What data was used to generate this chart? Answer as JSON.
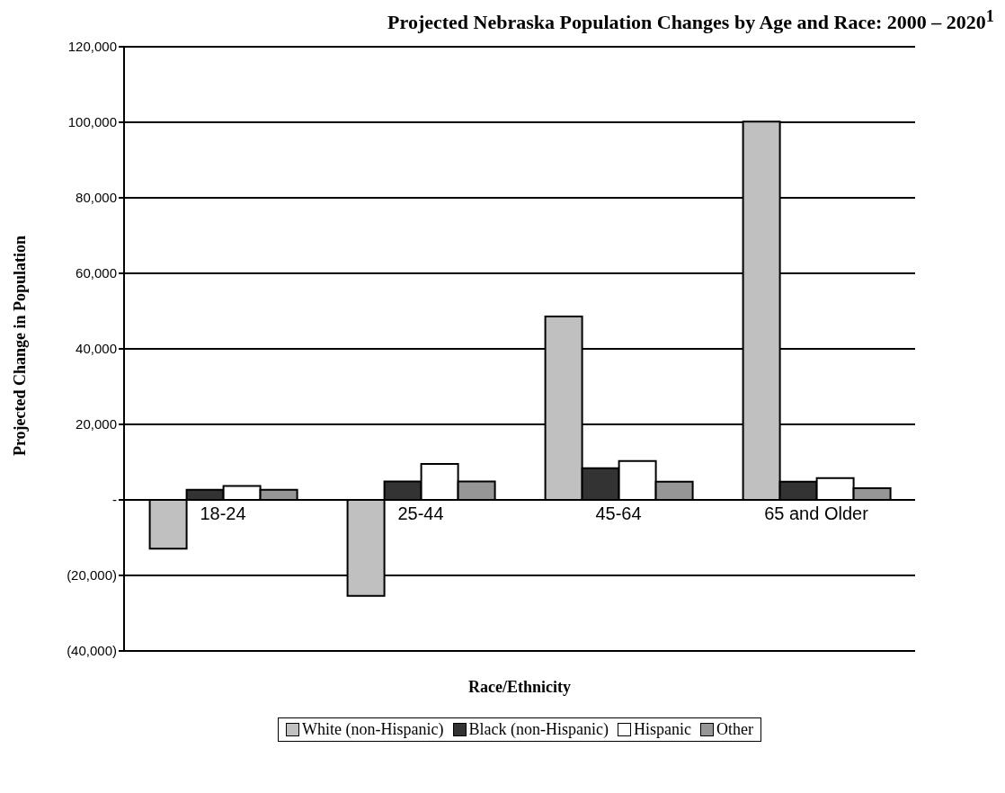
{
  "chart_data": {
    "type": "bar",
    "title": "Projected Nebraska Population Changes by Age and Race:  2000 – 2020$^{1}$",
    "xlabel": "Race/Ethnicity",
    "ylabel": "Projected Change in Population",
    "categories": [
      "18-24",
      "25-44",
      "45-64",
      "65 and Older"
    ],
    "series": [
      {
        "name": "White (non-Hispanic)",
        "color": "#c0c0c0",
        "values": [
          -12900,
          -25400,
          48600,
          100200
        ]
      },
      {
        "name": "Black (non-Hispanic)",
        "color": "#333333",
        "values": [
          2700,
          4900,
          8400,
          4800
        ]
      },
      {
        "name": "Hispanic",
        "color": "#ffffff",
        "values": [
          3700,
          9500,
          10300,
          5800
        ]
      },
      {
        "name": "Other",
        "color": "#969696",
        "values": [
          2700,
          4900,
          4800,
          3100
        ]
      }
    ],
    "ylim": [
      -40000,
      120000
    ],
    "yticks": [
      {
        "value": -40000,
        "label": "(40,000)"
      },
      {
        "value": -20000,
        "label": "(20,000)"
      },
      {
        "value": 0,
        "label": "-"
      },
      {
        "value": 20000,
        "label": "20,000"
      },
      {
        "value": 40000,
        "label": "40,000"
      },
      {
        "value": 60000,
        "label": "60,000"
      },
      {
        "value": 80000,
        "label": "80,000"
      },
      {
        "value": 100000,
        "label": "100,000"
      },
      {
        "value": 120000,
        "label": "120,000"
      }
    ],
    "grid": "y",
    "legend": "bottom"
  }
}
